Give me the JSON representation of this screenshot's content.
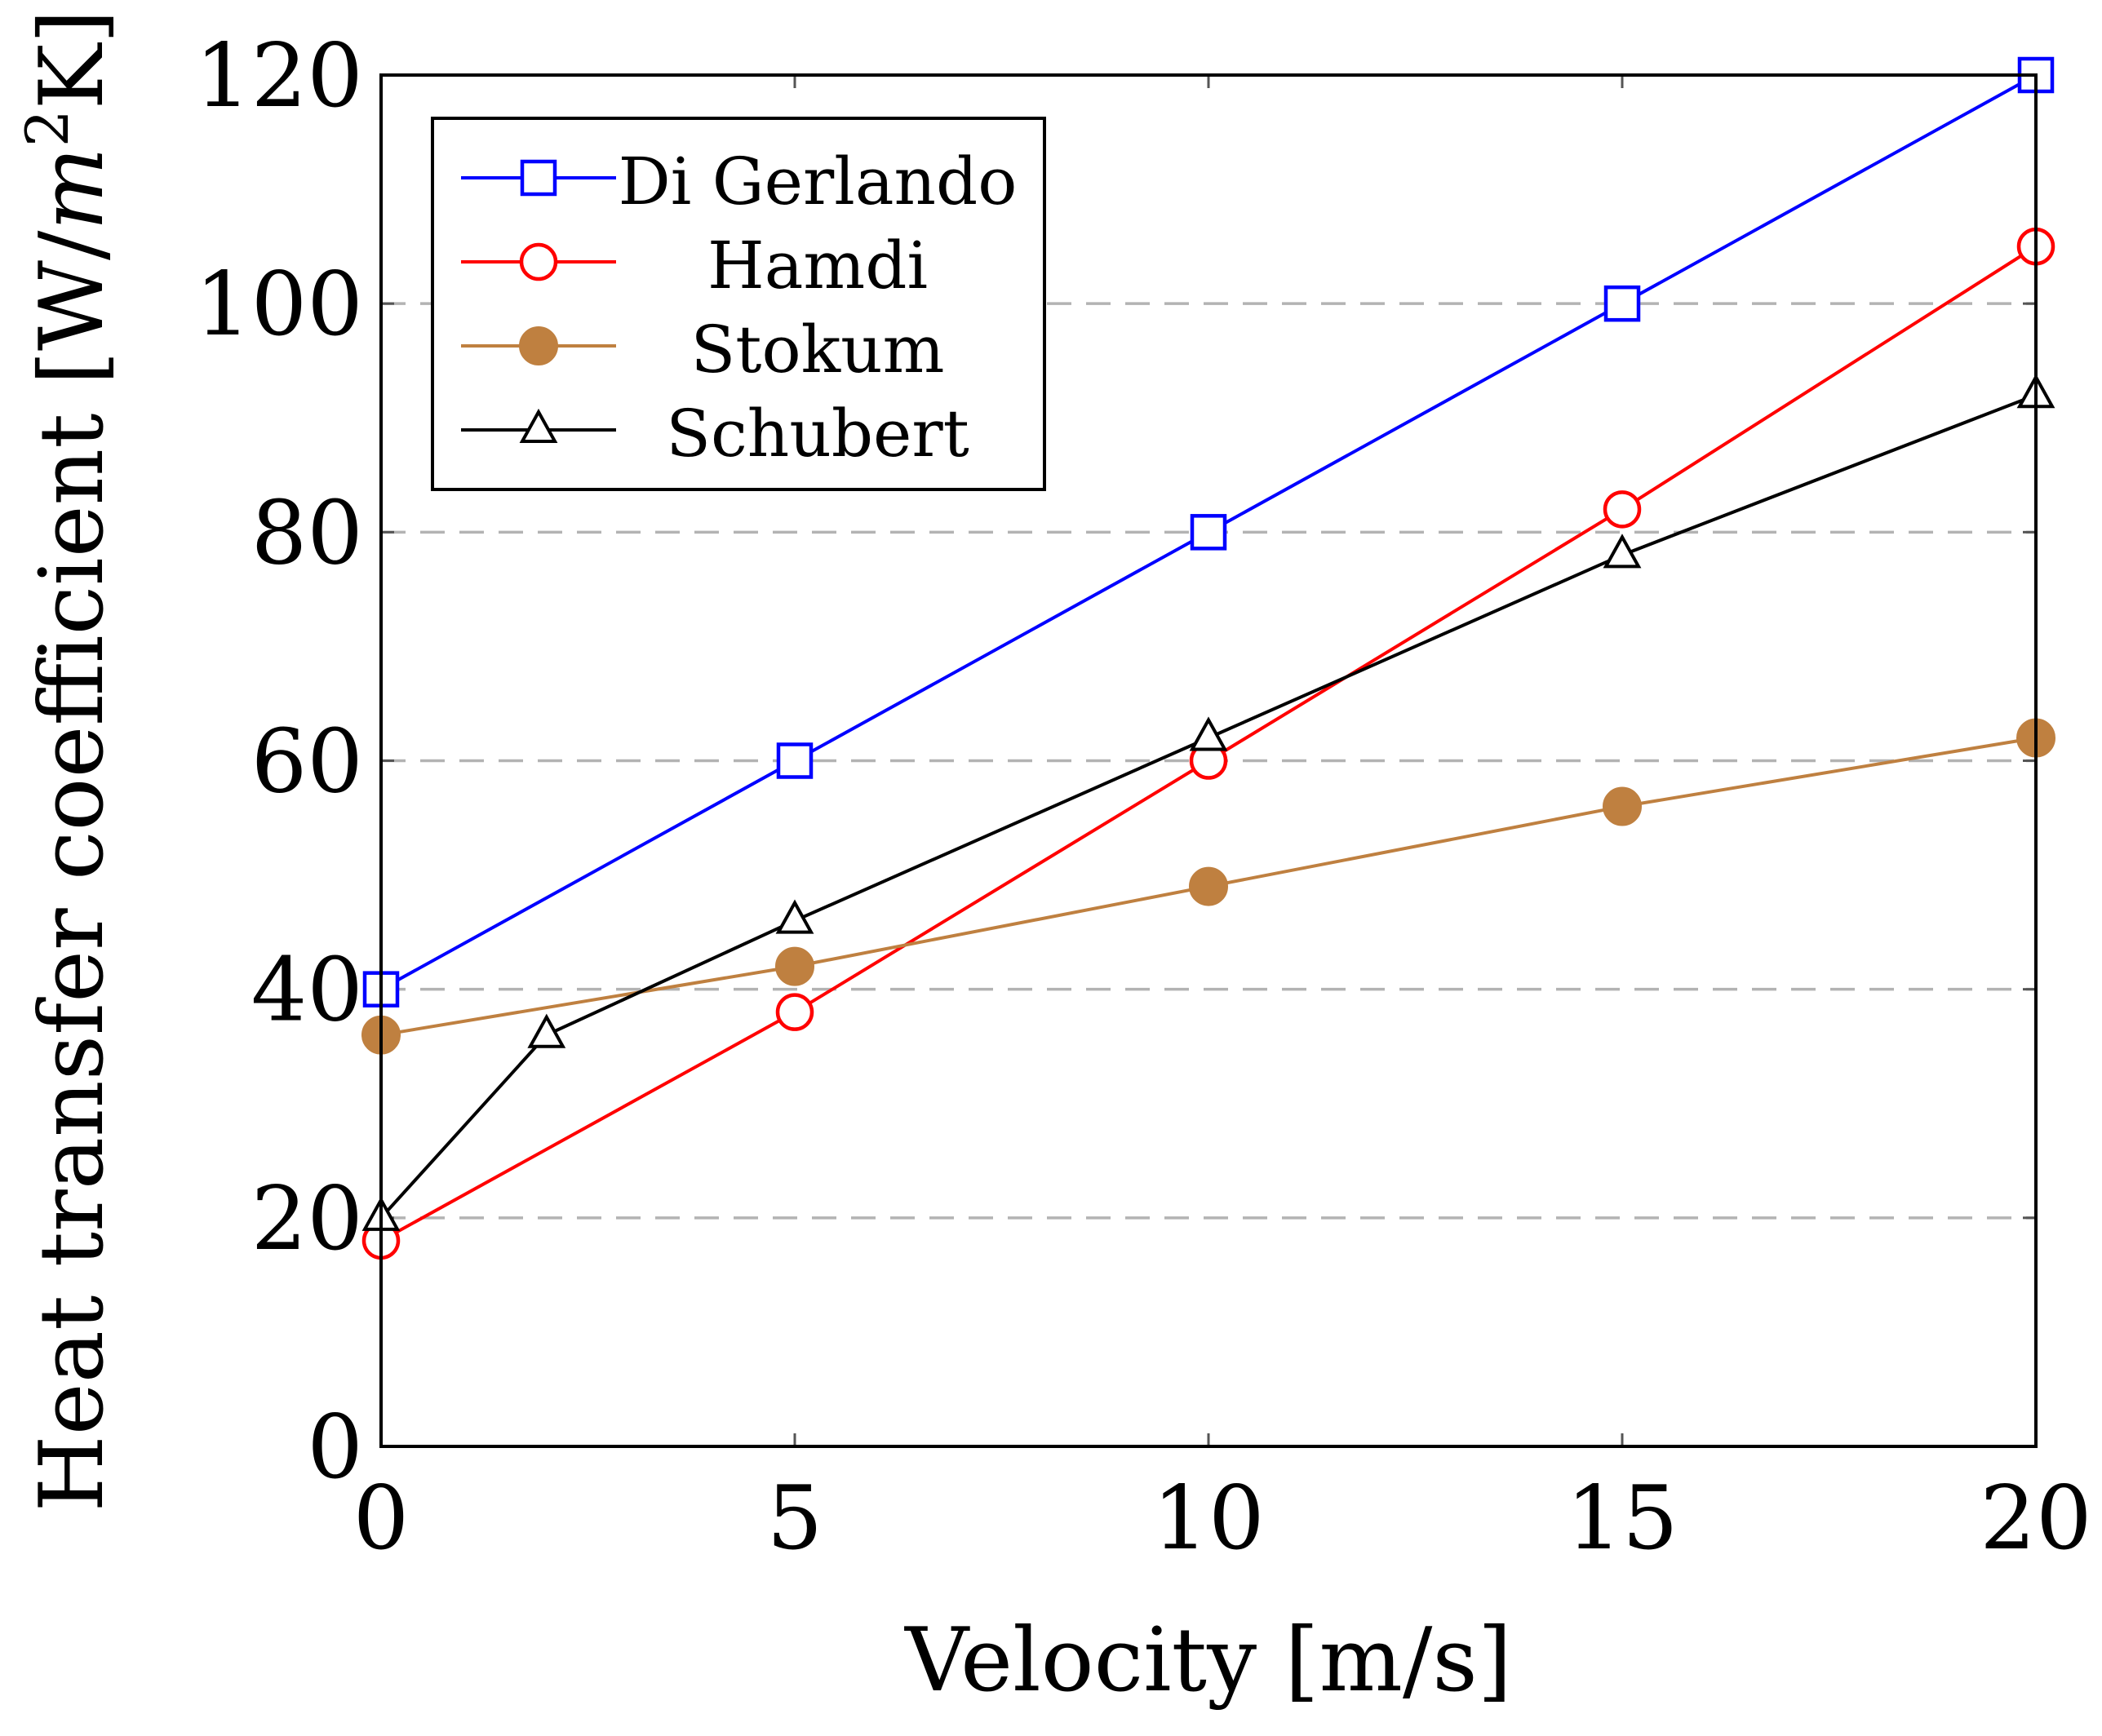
{
  "chart_data": {
    "type": "line",
    "xlabel": "Velocity [m/s]",
    "ylabel_text": "Heat transfer coefficient [W/",
    "ylabel_unit_base": "m",
    "ylabel_unit_exp": "2",
    "ylabel_tail": "K]",
    "xlim": [
      0,
      20
    ],
    "ylim": [
      0,
      120
    ],
    "xticks": [
      0,
      5,
      10,
      15,
      20
    ],
    "yticks": [
      0,
      20,
      40,
      60,
      80,
      100,
      120
    ],
    "grid": "horizontal dashed",
    "legend_position": "top-left",
    "series": [
      {
        "name": "Di Gerlando",
        "color": "#0000ff",
        "marker": "square-open",
        "x": [
          0,
          5,
          10,
          15,
          20
        ],
        "y": [
          40,
          60,
          80,
          100,
          120
        ]
      },
      {
        "name": "Hamdi",
        "color": "#ff0000",
        "marker": "circle-open",
        "x": [
          0,
          5,
          10,
          15,
          20
        ],
        "y": [
          18,
          38,
          60,
          82,
          105
        ]
      },
      {
        "name": "Stokum",
        "color": "#bf8040",
        "marker": "circle-filled",
        "x": [
          0,
          5,
          10,
          15,
          20
        ],
        "y": [
          36,
          42,
          49,
          56,
          62
        ]
      },
      {
        "name": "Schubert",
        "color": "#000000",
        "marker": "triangle-open",
        "x": [
          0,
          2,
          5,
          10,
          15,
          20
        ],
        "y": [
          20,
          36,
          46,
          62,
          78,
          92
        ]
      }
    ]
  }
}
